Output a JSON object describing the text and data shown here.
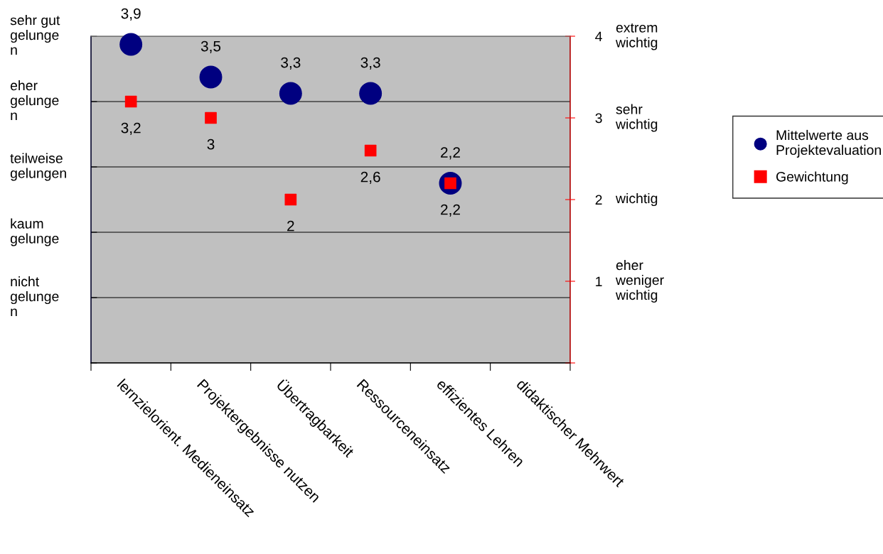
{
  "chart_data": {
    "type": "scatter",
    "categories": [
      "lernzielorient. Medieneinsatz",
      "Projektergebnisse nutzen",
      "Übertragbarkeit",
      "Ressourceneinsatz",
      "effizientes Lehren",
      "didaktischer Mehrwert"
    ],
    "series": [
      {
        "name": "Mittelwerte aus\nProjektevaluation",
        "color": "#000080",
        "marker": "circle",
        "axis": "y2",
        "values": [
          3.9,
          3.5,
          3.3,
          3.3,
          2.2,
          null
        ],
        "value_labels": [
          "3,9",
          "3,5",
          "3,3",
          "3,3",
          "2,2",
          null
        ]
      },
      {
        "name": "Gewichtung",
        "color": "#ff0000",
        "marker": "square",
        "axis": "y2",
        "values": [
          3.2,
          3,
          2,
          2.6,
          2.2,
          null
        ],
        "value_labels": [
          "3,2",
          "3",
          "2",
          "2,6",
          "2,2",
          null
        ]
      }
    ],
    "y_categories": [
      "sehr gut\ngelunge\nn",
      "eher\ngelunge\nn",
      "teilweise\ngelungen",
      "kaum\ngelunge",
      "nicht\ngelunge\nn"
    ],
    "y2lim": [
      0,
      4
    ],
    "y2ticks": [
      {
        "value": 0,
        "label": null
      },
      1,
      2,
      3,
      4
    ],
    "annotations": [
      "extrem\nwichtig",
      "sehr\nwichtig",
      "wichtig",
      "eher\nweniger\nwichtig"
    ],
    "grid": "y",
    "legend": "right"
  }
}
